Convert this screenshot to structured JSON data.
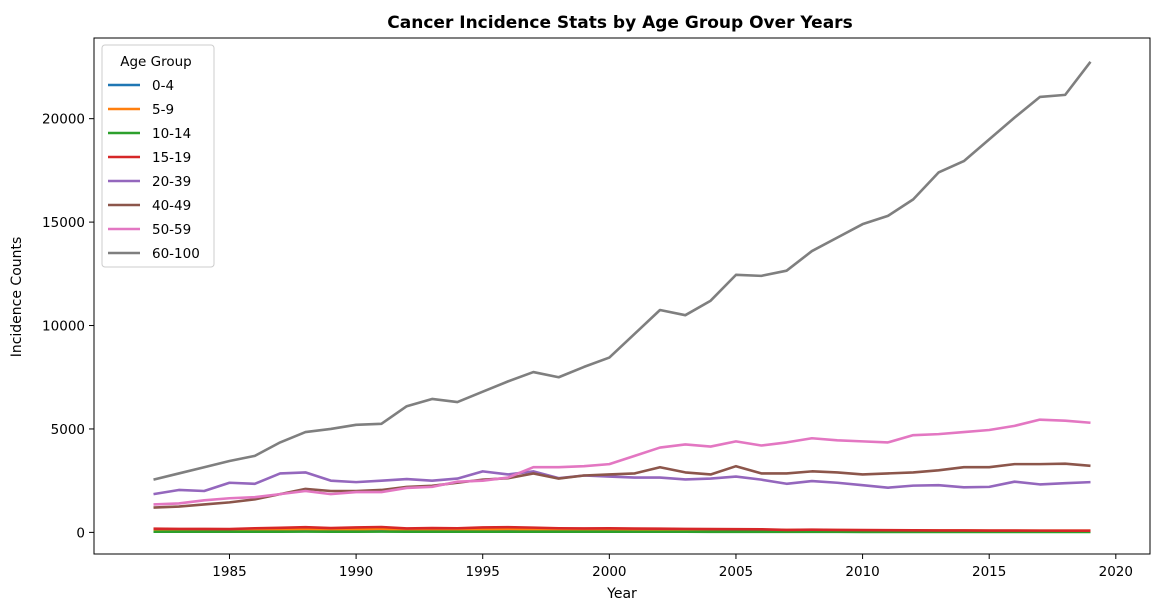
{
  "chart_data": {
    "type": "line",
    "title": "Cancer Incidence Stats by Age Group Over Years",
    "xlabel": "Year",
    "ylabel": "Incidence Counts",
    "xlim": [
      1979.65,
      2021.35
    ],
    "ylim": [
      -1045,
      23900
    ],
    "xticks": [
      1985,
      1990,
      1995,
      2000,
      2005,
      2010,
      2015,
      2020
    ],
    "yticks": [
      0,
      5000,
      10000,
      15000,
      20000
    ],
    "grid": false,
    "legend": {
      "title": "Age Group",
      "placement": "upper left"
    },
    "x": [
      1982,
      1983,
      1984,
      1985,
      1986,
      1987,
      1988,
      1989,
      1990,
      1991,
      1992,
      1993,
      1994,
      1995,
      1996,
      1997,
      1998,
      1999,
      2000,
      2001,
      2002,
      2003,
      2004,
      2005,
      2006,
      2007,
      2008,
      2009,
      2010,
      2011,
      2012,
      2013,
      2014,
      2015,
      2016,
      2017,
      2018,
      2019
    ],
    "series": [
      {
        "name": "0-4",
        "color": "#1f77b4",
        "values": [
          40,
          42,
          45,
          48,
          50,
          52,
          55,
          50,
          52,
          55,
          50,
          48,
          50,
          52,
          55,
          50,
          48,
          45,
          46,
          45,
          44,
          42,
          43,
          42,
          40,
          38,
          40,
          38,
          36,
          37,
          36,
          35,
          34,
          33,
          33,
          32,
          32,
          31
        ]
      },
      {
        "name": "5-9",
        "color": "#ff7f0e",
        "values": [
          120,
          125,
          130,
          128,
          140,
          150,
          160,
          145,
          150,
          165,
          130,
          140,
          135,
          145,
          160,
          150,
          140,
          135,
          140,
          138,
          135,
          130,
          128,
          125,
          120,
          110,
          115,
          105,
          100,
          95,
          92,
          90,
          88,
          85,
          85,
          82,
          80,
          80
        ]
      },
      {
        "name": "10-14",
        "color": "#2ca02c",
        "values": [
          30,
          32,
          33,
          34,
          35,
          36,
          37,
          35,
          36,
          37,
          35,
          34,
          33,
          35,
          36,
          34,
          33,
          32,
          32,
          31,
          30,
          30,
          29,
          28,
          27,
          26,
          26,
          25,
          24,
          24,
          23,
          22,
          22,
          21,
          21,
          20,
          20,
          20
        ]
      },
      {
        "name": "15-19",
        "color": "#d62728",
        "values": [
          180,
          170,
          165,
          160,
          200,
          220,
          250,
          210,
          240,
          260,
          190,
          210,
          200,
          240,
          250,
          230,
          200,
          190,
          195,
          185,
          180,
          170,
          160,
          155,
          150,
          120,
          130,
          120,
          110,
          105,
          100,
          95,
          92,
          90,
          88,
          85,
          82,
          80
        ]
      },
      {
        "name": "20-39",
        "color": "#9467bd",
        "values": [
          1850,
          2050,
          2000,
          2400,
          2350,
          2850,
          2900,
          2500,
          2430,
          2500,
          2580,
          2500,
          2600,
          2950,
          2800,
          2950,
          2620,
          2750,
          2700,
          2650,
          2650,
          2560,
          2600,
          2700,
          2550,
          2350,
          2480,
          2400,
          2280,
          2160,
          2260,
          2280,
          2180,
          2200,
          2450,
          2320,
          2380,
          2430
        ]
      },
      {
        "name": "40-49",
        "color": "#8c564b",
        "values": [
          1200,
          1250,
          1350,
          1450,
          1600,
          1850,
          2100,
          2000,
          2000,
          2050,
          2200,
          2250,
          2400,
          2550,
          2620,
          2850,
          2600,
          2750,
          2800,
          2850,
          3150,
          2900,
          2800,
          3200,
          2850,
          2850,
          2950,
          2900,
          2800,
          2850,
          2900,
          3000,
          3150,
          3150,
          3300,
          3300,
          3320,
          3220
        ]
      },
      {
        "name": "50-59",
        "color": "#e377c2",
        "values": [
          1350,
          1400,
          1550,
          1650,
          1700,
          1850,
          2000,
          1850,
          1950,
          1950,
          2150,
          2200,
          2450,
          2500,
          2650,
          3150,
          3150,
          3200,
          3300,
          3700,
          4100,
          4250,
          4150,
          4400,
          4200,
          4350,
          4550,
          4450,
          4400,
          4350,
          4700,
          4750,
          4850,
          4950,
          5150,
          5450,
          5400,
          5300
        ]
      },
      {
        "name": "60-100",
        "color": "#7f7f7f",
        "values": [
          2550,
          2850,
          3150,
          3450,
          3700,
          4350,
          4850,
          5000,
          5200,
          5250,
          6100,
          6450,
          6300,
          6800,
          7300,
          7750,
          7500,
          8000,
          8450,
          9600,
          10750,
          10500,
          11200,
          12450,
          12400,
          12650,
          13600,
          14250,
          14900,
          15300,
          16100,
          17400,
          17950,
          19000,
          20050,
          21050,
          21150,
          22750
        ]
      }
    ]
  }
}
